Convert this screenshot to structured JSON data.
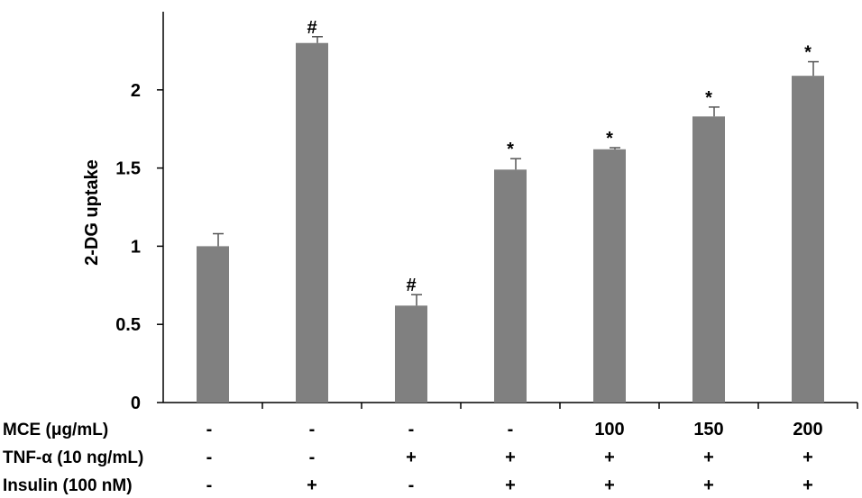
{
  "chart_data": {
    "type": "bar",
    "title": "",
    "xlabel": "",
    "ylabel": "2-DG uptake",
    "ylim": [
      0,
      2.5
    ],
    "yticks": [
      0,
      0.5,
      1,
      1.5,
      2
    ],
    "ytick_labels": [
      "0",
      "0.5",
      "1",
      "1.5",
      "2"
    ],
    "grid": false,
    "bar_color": "#808080",
    "values": [
      1.0,
      2.3,
      0.62,
      1.49,
      1.62,
      1.83,
      2.09
    ],
    "errors": [
      0.08,
      0.04,
      0.07,
      0.07,
      0.01,
      0.06,
      0.09
    ],
    "annotations": [
      "",
      "#",
      "#",
      "*",
      "*",
      "*",
      "*"
    ],
    "condition_rows": [
      {
        "label": "MCE (μg/mL)",
        "values": [
          "-",
          "-",
          "-",
          "-",
          "100",
          "150",
          "200"
        ]
      },
      {
        "label": "TNF-α (10 ng/mL)",
        "values": [
          "-",
          "-",
          "+",
          "+",
          "+",
          "+",
          "+"
        ]
      },
      {
        "label": "Insulin (100 nM)",
        "values": [
          "-",
          "+",
          "-",
          "+",
          "+",
          "+",
          "+"
        ]
      }
    ]
  }
}
